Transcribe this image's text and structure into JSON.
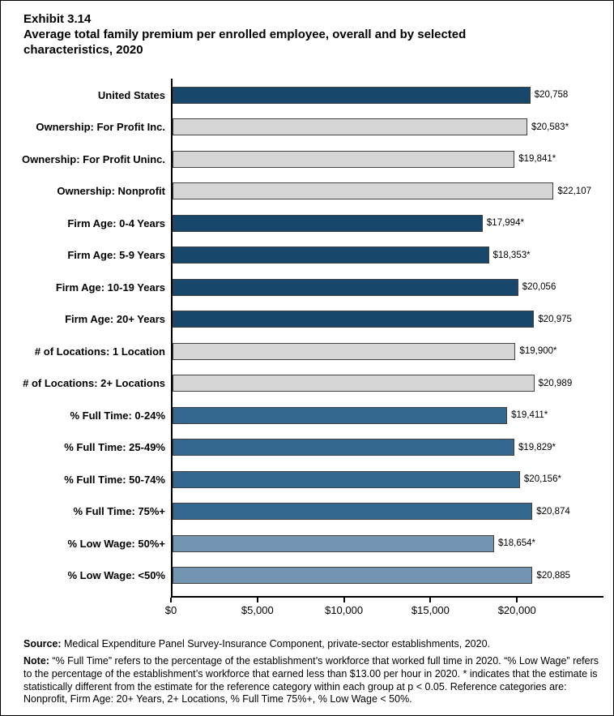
{
  "header": {
    "exhibit_label": "Exhibit 3.14",
    "title": "Average total family premium per enrolled employee, overall and by selected characteristics, 2020"
  },
  "chart_data": {
    "type": "bar",
    "orientation": "horizontal",
    "title": "Average total family premium per enrolled employee, overall and by selected characteristics, 2020",
    "xlabel": "",
    "ylabel": "",
    "xlim": [
      0,
      25000
    ],
    "grid": false,
    "legend": "none",
    "x_ticks": [
      {
        "value": 0,
        "label": "$0"
      },
      {
        "value": 5000,
        "label": "$5,000"
      },
      {
        "value": 10000,
        "label": "$10,000"
      },
      {
        "value": 15000,
        "label": "$15,000"
      },
      {
        "value": 20000,
        "label": "$20,000"
      }
    ],
    "colors": {
      "navy": "#17476B",
      "gray": "#D6D6D6",
      "blue": "#35688F",
      "slate": "#7395B2",
      "bar_border": "#404040"
    },
    "rows": [
      {
        "label": "United States",
        "value": 20758,
        "value_label": "$20,758",
        "color_key": "navy"
      },
      {
        "label": "Ownership: For Profit Inc.",
        "value": 20583,
        "value_label": "$20,583*",
        "color_key": "gray"
      },
      {
        "label": "Ownership: For Profit Uninc.",
        "value": 19841,
        "value_label": "$19,841*",
        "color_key": "gray"
      },
      {
        "label": "Ownership: Nonprofit",
        "value": 22107,
        "value_label": "$22,107",
        "color_key": "gray"
      },
      {
        "label": "Firm Age: 0-4 Years",
        "value": 17994,
        "value_label": "$17,994*",
        "color_key": "navy"
      },
      {
        "label": "Firm Age: 5-9 Years",
        "value": 18353,
        "value_label": "$18,353*",
        "color_key": "navy"
      },
      {
        "label": "Firm Age: 10-19 Years",
        "value": 20056,
        "value_label": "$20,056",
        "color_key": "navy"
      },
      {
        "label": "Firm Age: 20+ Years",
        "value": 20975,
        "value_label": "$20,975",
        "color_key": "navy"
      },
      {
        "label": "# of Locations: 1 Location",
        "value": 19900,
        "value_label": "$19,900*",
        "color_key": "gray"
      },
      {
        "label": "# of Locations: 2+ Locations",
        "value": 20989,
        "value_label": "$20,989",
        "color_key": "gray"
      },
      {
        "label": "% Full Time: 0-24%",
        "value": 19411,
        "value_label": "$19,411*",
        "color_key": "blue"
      },
      {
        "label": "% Full Time: 25-49%",
        "value": 19829,
        "value_label": "$19,829*",
        "color_key": "blue"
      },
      {
        "label": "% Full Time: 50-74%",
        "value": 20156,
        "value_label": "$20,156*",
        "color_key": "blue"
      },
      {
        "label": "% Full Time: 75%+",
        "value": 20874,
        "value_label": "$20,874",
        "color_key": "blue"
      },
      {
        "label": "% Low Wage: 50%+",
        "value": 18654,
        "value_label": "$18,654*",
        "color_key": "slate"
      },
      {
        "label": "% Low Wage: <50%",
        "value": 20885,
        "value_label": "$20,885",
        "color_key": "slate"
      }
    ]
  },
  "footer": {
    "source_label": "Source:",
    "source_text": " Medical Expenditure Panel Survey-Insurance Component, private-sector establishments, 2020.",
    "note_label": "Note:",
    "note_text": " “% Full Time” refers to the percentage of the establishment’s workforce that worked full time in 2020. “% Low Wage” refers to the percentage of the establishment’s workforce that earned less than $13.00 per hour in 2020. * indicates that the estimate is statistically different from the estimate for the reference category within each group at p < 0.05. Reference categories are: Nonprofit, Firm Age: 20+ Years, 2+ Locations, % Full Time 75%+, % Low Wage < 50%."
  }
}
